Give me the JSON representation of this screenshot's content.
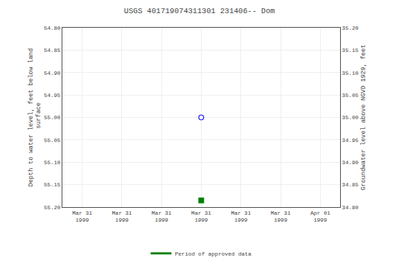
{
  "chart_data": {
    "type": "scatter",
    "title": "USGS 401719074311301 231406-- Dom",
    "y_label": "Depth to water level, feet below land\n surface",
    "y2_label": "Groundwater level above NGVD 1929, feet",
    "categories": [
      "Mar 31\n1999",
      "Mar 31\n1999",
      "Mar 31\n1999",
      "Mar 31\n1999",
      "Mar 31\n1999",
      "Mar 31\n1999",
      "Apr 01\n1999"
    ],
    "series": [
      {
        "type": "scatter",
        "marker": "circle-open",
        "color": "#0000ff",
        "values": [
          null,
          null,
          null,
          55.0,
          null,
          null,
          null
        ]
      },
      {
        "type": "scatter",
        "marker": "square",
        "color": "#008000",
        "values": [
          null,
          null,
          null,
          55.185,
          null,
          null,
          null
        ]
      },
      {
        "name": "Period of approved data",
        "type": "line",
        "color": "#008000",
        "values": [
          null,
          null,
          null,
          null,
          null,
          null,
          null
        ]
      }
    ],
    "ylim": [
      55.2,
      54.8
    ],
    "yticks": [
      {
        "value": 54.8,
        "label": "54.80"
      },
      54.85,
      {
        "value": 54.9,
        "label": "54.90"
      },
      54.95,
      {
        "value": 55.0,
        "label": "55.00"
      },
      55.05,
      {
        "value": 55.1,
        "label": "55.10"
      },
      55.15,
      {
        "value": 55.2,
        "label": "55.20"
      }
    ],
    "y2lim": [
      34.8,
      35.2
    ],
    "y2ticks": [
      {
        "value": 35.2,
        "label": "35.20"
      },
      35.15,
      {
        "value": 35.1,
        "label": "35.10"
      },
      35.05,
      {
        "value": 35.0,
        "label": "35.00"
      },
      34.95,
      {
        "value": 34.9,
        "label": "34.90"
      },
      34.85,
      {
        "value": 34.8,
        "label": "34.80"
      }
    ],
    "grid": true,
    "legend": "bottom"
  }
}
